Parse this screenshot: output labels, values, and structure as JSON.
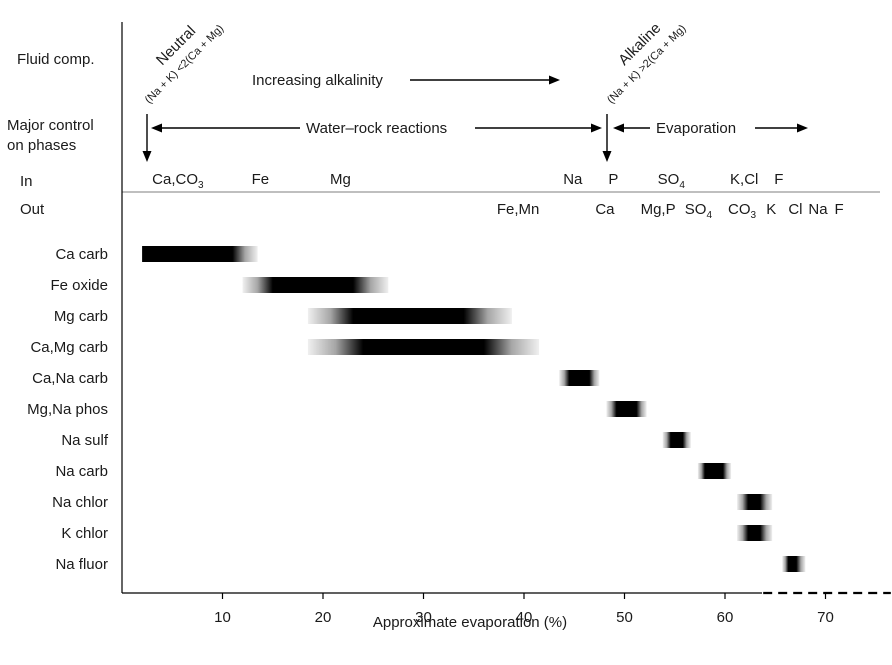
{
  "chart_data": {
    "type": "bar",
    "subtype": "range",
    "xlabel": "Approximate evaporation (%)",
    "xlim": [
      0,
      75
    ],
    "xticks": [
      10,
      20,
      30,
      40,
      50,
      60,
      70
    ],
    "header": {
      "row_labels": {
        "fluid": "Fluid comp.",
        "control1": "Major control",
        "control2": "on phases",
        "in": "In",
        "out": "Out"
      },
      "neutral": {
        "label": "Neutral",
        "condition": "(Na + K) <2(Ca + Mg)",
        "x": 2.5
      },
      "alkaline": {
        "label": "Alkaline",
        "condition": "(Na + K) >2(Ca + Mg)",
        "x": 48.5
      },
      "increasing_alkalinity": "Increasing alkalinity",
      "water_rock": "Water–rock reactions",
      "evaporation": "Evaporation",
      "in_species": [
        {
          "text": "Ca,CO",
          "sub": "3",
          "x": 3
        },
        {
          "text": "Fe",
          "x": 12.9
        },
        {
          "text": "Mg",
          "x": 20.7
        },
        {
          "text": "Na",
          "x": 43.9
        },
        {
          "text": "P",
          "x": 48.4
        },
        {
          "text": "SO",
          "sub": "4",
          "x": 53.3
        },
        {
          "text": "K,Cl",
          "x": 60.5
        },
        {
          "text": "F",
          "x": 64.9
        }
      ],
      "out_species": [
        {
          "text": "Fe,Mn",
          "x": 37.3
        },
        {
          "text": "Ca",
          "x": 47.1
        },
        {
          "text": "Mg,P",
          "x": 51.6
        },
        {
          "text": "SO",
          "sub": "4",
          "x": 56
        },
        {
          "text": "CO",
          "sub": "3",
          "x": 60.3
        },
        {
          "text": "K",
          "x": 64.1
        },
        {
          "text": "Cl",
          "x": 66.3
        },
        {
          "text": "Na",
          "x": 68.3
        },
        {
          "text": "F",
          "x": 70.9
        }
      ]
    },
    "series": [
      {
        "name": "Ca carb",
        "fade_start": 2,
        "solid_start": 2,
        "solid_end": 11,
        "fade_end": 13.5
      },
      {
        "name": "Fe oxide",
        "fade_start": 12,
        "solid_start": 15,
        "solid_end": 23,
        "fade_end": 26.5
      },
      {
        "name": "Mg carb",
        "fade_start": 18.5,
        "solid_start": 23,
        "solid_end": 34,
        "fade_end": 38.8
      },
      {
        "name": "Ca,Mg carb",
        "fade_start": 18.5,
        "solid_start": 24,
        "solid_end": 36,
        "fade_end": 41.5
      },
      {
        "name": "Ca,Na carb",
        "fade_start": 43.5,
        "solid_start": 44.5,
        "solid_end": 46.5,
        "fade_end": 47.5
      },
      {
        "name": "Mg,Na phos",
        "fade_start": 48.2,
        "solid_start": 49.2,
        "solid_end": 51.2,
        "fade_end": 52.2
      },
      {
        "name": "Na sulf",
        "fade_start": 53.8,
        "solid_start": 54.6,
        "solid_end": 55.8,
        "fade_end": 56.6
      },
      {
        "name": "Na carb",
        "fade_start": 57.3,
        "solid_start": 58,
        "solid_end": 59.8,
        "fade_end": 60.6
      },
      {
        "name": "Na chlor",
        "fade_start": 61.2,
        "solid_start": 62.3,
        "solid_end": 63.5,
        "fade_end": 64.7
      },
      {
        "name": "K chlor",
        "fade_start": 61.2,
        "solid_start": 62.3,
        "solid_end": 63.5,
        "fade_end": 64.7
      },
      {
        "name": "Na fluor",
        "fade_start": 65.7,
        "solid_start": 66.3,
        "solid_end": 67.1,
        "fade_end": 68
      }
    ],
    "baseline_dash": {
      "x_start": 63.8,
      "x_end": 76.5
    }
  }
}
